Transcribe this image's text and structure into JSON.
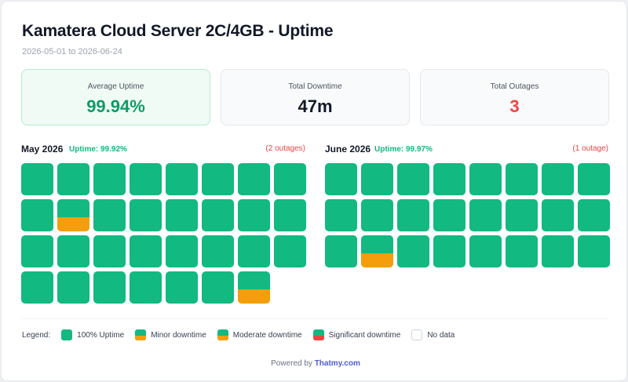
{
  "title": "Kamatera Cloud Server 2C/4GB - Uptime",
  "date_range": "2026-05-01 to 2026-06-24",
  "colors": {
    "up": "#12b981",
    "minor": "#f59e0b",
    "moderate": "#f59e0b",
    "significant": "#ef4444",
    "green_text": "#059669",
    "red_text": "#ef4444"
  },
  "stats": [
    {
      "label": "Average Uptime",
      "value": "99.94%",
      "value_color": "#0f9a6a"
    },
    {
      "label": "Total Downtime",
      "value": "47m",
      "value_color": "#111827"
    },
    {
      "label": "Total Outages",
      "value": "3",
      "value_color": "#ef4444"
    }
  ],
  "months": [
    {
      "name": "May 2026",
      "uptime": "Uptime: 99.92%",
      "outages": "(2 outages)",
      "days": [
        {
          "down_fraction": 0
        },
        {
          "down_fraction": 0
        },
        {
          "down_fraction": 0
        },
        {
          "down_fraction": 0
        },
        {
          "down_fraction": 0
        },
        {
          "down_fraction": 0
        },
        {
          "down_fraction": 0
        },
        {
          "down_fraction": 0
        },
        {
          "down_fraction": 0
        },
        {
          "down_fraction": 0.45
        },
        {
          "down_fraction": 0
        },
        {
          "down_fraction": 0
        },
        {
          "down_fraction": 0
        },
        {
          "down_fraction": 0
        },
        {
          "down_fraction": 0
        },
        {
          "down_fraction": 0
        },
        {
          "down_fraction": 0
        },
        {
          "down_fraction": 0
        },
        {
          "down_fraction": 0
        },
        {
          "down_fraction": 0
        },
        {
          "down_fraction": 0
        },
        {
          "down_fraction": 0
        },
        {
          "down_fraction": 0
        },
        {
          "down_fraction": 0
        },
        {
          "down_fraction": 0
        },
        {
          "down_fraction": 0
        },
        {
          "down_fraction": 0
        },
        {
          "down_fraction": 0
        },
        {
          "down_fraction": 0
        },
        {
          "down_fraction": 0
        },
        {
          "down_fraction": 0.45
        }
      ]
    },
    {
      "name": "June 2026",
      "uptime": "Uptime: 99.97%",
      "outages": "(1 outage)",
      "days": [
        {
          "down_fraction": 0
        },
        {
          "down_fraction": 0
        },
        {
          "down_fraction": 0
        },
        {
          "down_fraction": 0
        },
        {
          "down_fraction": 0
        },
        {
          "down_fraction": 0
        },
        {
          "down_fraction": 0
        },
        {
          "down_fraction": 0
        },
        {
          "down_fraction": 0
        },
        {
          "down_fraction": 0
        },
        {
          "down_fraction": 0
        },
        {
          "down_fraction": 0
        },
        {
          "down_fraction": 0
        },
        {
          "down_fraction": 0
        },
        {
          "down_fraction": 0
        },
        {
          "down_fraction": 0
        },
        {
          "down_fraction": 0
        },
        {
          "down_fraction": 0.45
        },
        {
          "down_fraction": 0
        },
        {
          "down_fraction": 0
        },
        {
          "down_fraction": 0
        },
        {
          "down_fraction": 0
        },
        {
          "down_fraction": 0
        },
        {
          "down_fraction": 0
        }
      ]
    }
  ],
  "legend": {
    "label": "Legend:",
    "items": [
      {
        "label": "100% Uptime",
        "kind": "up"
      },
      {
        "label": "Minor downtime",
        "kind": "minor"
      },
      {
        "label": "Moderate downtime",
        "kind": "moderate"
      },
      {
        "label": "Significant downtime",
        "kind": "significant"
      },
      {
        "label": "No data",
        "kind": "none"
      }
    ]
  },
  "footer": {
    "prefix": "Powered by",
    "brand": "Thatmy.com"
  }
}
